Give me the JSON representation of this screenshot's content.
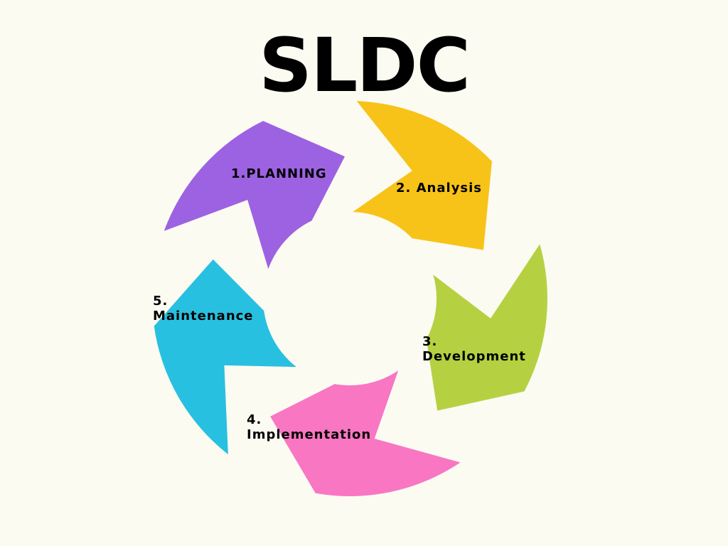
{
  "title": "SLDC",
  "colors": {
    "background": "#fbfbf2",
    "text": "#000000"
  },
  "phases": [
    {
      "label_lines": [
        "1.PLANNING"
      ],
      "color": "#9d62e2",
      "icon": "arrow-segment"
    },
    {
      "label_lines": [
        "2. Analysis"
      ],
      "color": "#f8c318",
      "icon": "arrow-segment"
    },
    {
      "label_lines": [
        "3.",
        "Development"
      ],
      "color": "#b5d142",
      "icon": "arrow-segment"
    },
    {
      "label_lines": [
        "4.",
        "Implementation"
      ],
      "color": "#f976c2",
      "icon": "arrow-segment"
    },
    {
      "label_lines": [
        "5.",
        "Maintenance"
      ],
      "color": "#28c0e0",
      "icon": "arrow-segment"
    }
  ]
}
